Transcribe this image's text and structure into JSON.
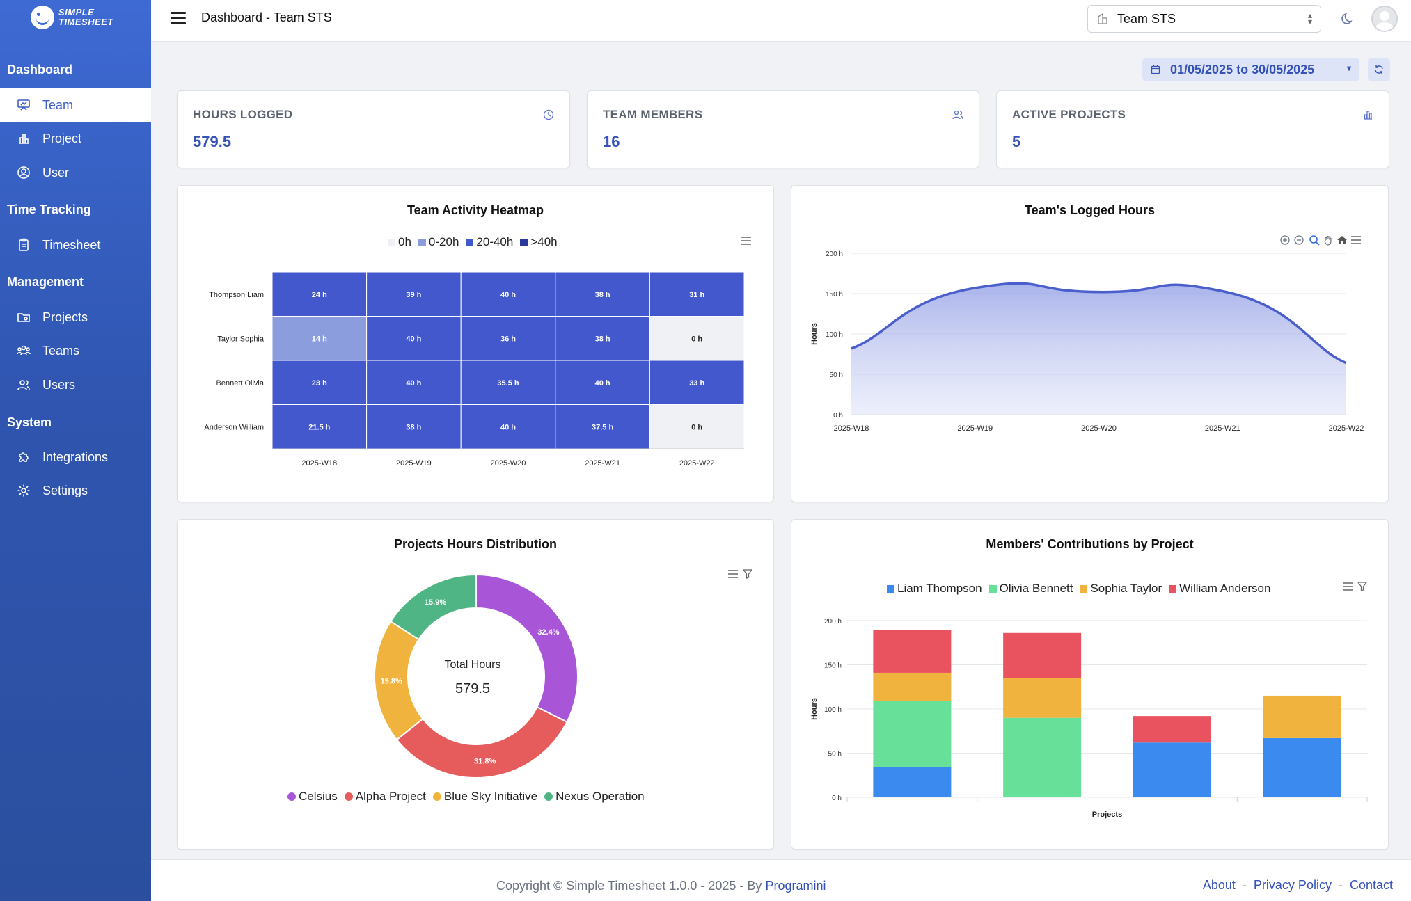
{
  "app": {
    "logo_line1": "SIMPLE",
    "logo_line2": "TIMESHEET"
  },
  "sidebar": {
    "sections": [
      {
        "label": "Dashboard"
      },
      {
        "label": "Time Tracking"
      },
      {
        "label": "Management"
      },
      {
        "label": "System"
      }
    ],
    "items": [
      {
        "label": "Team",
        "icon": "presentation-icon",
        "active": true
      },
      {
        "label": "Project",
        "icon": "bar-chart-icon"
      },
      {
        "label": "User",
        "icon": "user-circle-icon"
      },
      {
        "label": "Timesheet",
        "icon": "clipboard-icon"
      },
      {
        "label": "Projects",
        "icon": "folder-icon"
      },
      {
        "label": "Teams",
        "icon": "users-group-icon"
      },
      {
        "label": "Users",
        "icon": "users-icon"
      },
      {
        "label": "Integrations",
        "icon": "puzzle-icon"
      },
      {
        "label": "Settings",
        "icon": "gear-icon"
      }
    ]
  },
  "header": {
    "title": "Dashboard - Team STS",
    "team_selector": "Team STS"
  },
  "date_range": "01/05/2025 to 30/05/2025",
  "stats": [
    {
      "label": "HOURS LOGGED",
      "value": "579.5",
      "icon": "clock-icon"
    },
    {
      "label": "TEAM MEMBERS",
      "value": "16",
      "icon": "users-icon"
    },
    {
      "label": "ACTIVE PROJECTS",
      "value": "5",
      "icon": "bar-chart-icon"
    }
  ],
  "colors": {
    "accent": "#3552b8",
    "heat_0": "#f0f1f4",
    "heat_1": "#8c9ddd",
    "heat_2": "#4358cc",
    "heat_3": "#2a3a9c",
    "line": "#4a5fcc",
    "celsius": "#a855d8",
    "alpha": "#e65c5c",
    "bluesky": "#f0b43e",
    "nexus": "#4fb585",
    "liam": "#3b8aef",
    "olivia": "#67e09a",
    "sophia": "#f0b43e",
    "william": "#e9525f"
  },
  "heatmap": {
    "title": "Team Activity Heatmap",
    "legend": [
      "0h",
      "0-20h",
      "20-40h",
      ">40h"
    ]
  },
  "line_chart": {
    "title": "Team's Logged Hours"
  },
  "donut": {
    "title": "Projects Hours Distribution",
    "center_label": "Total Hours",
    "center_value": "579.5"
  },
  "stacked": {
    "title": "Members' Contributions by Project"
  },
  "chart_data": [
    {
      "type": "heatmap",
      "title": "Team Activity Heatmap",
      "x": [
        "2025-W18",
        "2025-W19",
        "2025-W20",
        "2025-W21",
        "2025-W22"
      ],
      "y": [
        "Thompson Liam",
        "Taylor Sophia",
        "Bennett Olivia",
        "Anderson William"
      ],
      "values": [
        [
          24,
          39,
          40,
          38,
          31
        ],
        [
          14,
          40,
          36,
          38,
          0
        ],
        [
          23,
          40,
          35.5,
          40,
          33
        ],
        [
          21.5,
          38,
          40,
          37.5,
          0
        ]
      ],
      "unit": "h",
      "legend": [
        "0h",
        "0-20h",
        "20-40h",
        ">40h"
      ]
    },
    {
      "type": "area",
      "title": "Team's Logged Hours",
      "x": [
        "2025-W18",
        "2025-W19",
        "2025-W20",
        "2025-W21",
        "2025-W22"
      ],
      "values": [
        82,
        157,
        152,
        153,
        64
      ],
      "ylabel": "Hours",
      "ylim": [
        0,
        200
      ],
      "yticks": [
        "0 h",
        "50 h",
        "100 h",
        "150 h",
        "200 h"
      ],
      "grid": true
    },
    {
      "type": "pie",
      "title": "Projects Hours Distribution",
      "labels": [
        "Celsius",
        "Alpha Project",
        "Blue Sky Initiative",
        "Nexus Operation"
      ],
      "values": [
        32.4,
        31.8,
        19.8,
        15.9
      ],
      "value_labels": [
        "32.4%",
        "31.8%",
        "19.8%",
        "15.9%"
      ],
      "legend": "bottom"
    },
    {
      "type": "bar",
      "title": "Members' Contributions by Project",
      "xlabel": "Projects",
      "ylabel": "Hours",
      "ylim": [
        0,
        200
      ],
      "yticks": [
        "0 h",
        "50 h",
        "100 h",
        "150 h",
        "200 h"
      ],
      "stacked": true,
      "categories": [
        "",
        "",
        "",
        ""
      ],
      "series": [
        {
          "name": "Liam Thompson",
          "values": [
            34,
            0,
            62,
            67
          ]
        },
        {
          "name": "Olivia Bennett",
          "values": [
            75,
            90,
            0,
            0
          ]
        },
        {
          "name": "Sophia Taylor",
          "values": [
            32,
            45,
            0,
            48
          ]
        },
        {
          "name": "William Anderson",
          "values": [
            48,
            51,
            30,
            0
          ]
        }
      ],
      "legend": "top"
    }
  ],
  "footer": {
    "copyright": "Copyright © Simple Timesheet 1.0.0 - 2025 - By",
    "author": "Programini",
    "links": [
      "About",
      "Privacy Policy",
      "Contact"
    ],
    "separator": "-"
  }
}
